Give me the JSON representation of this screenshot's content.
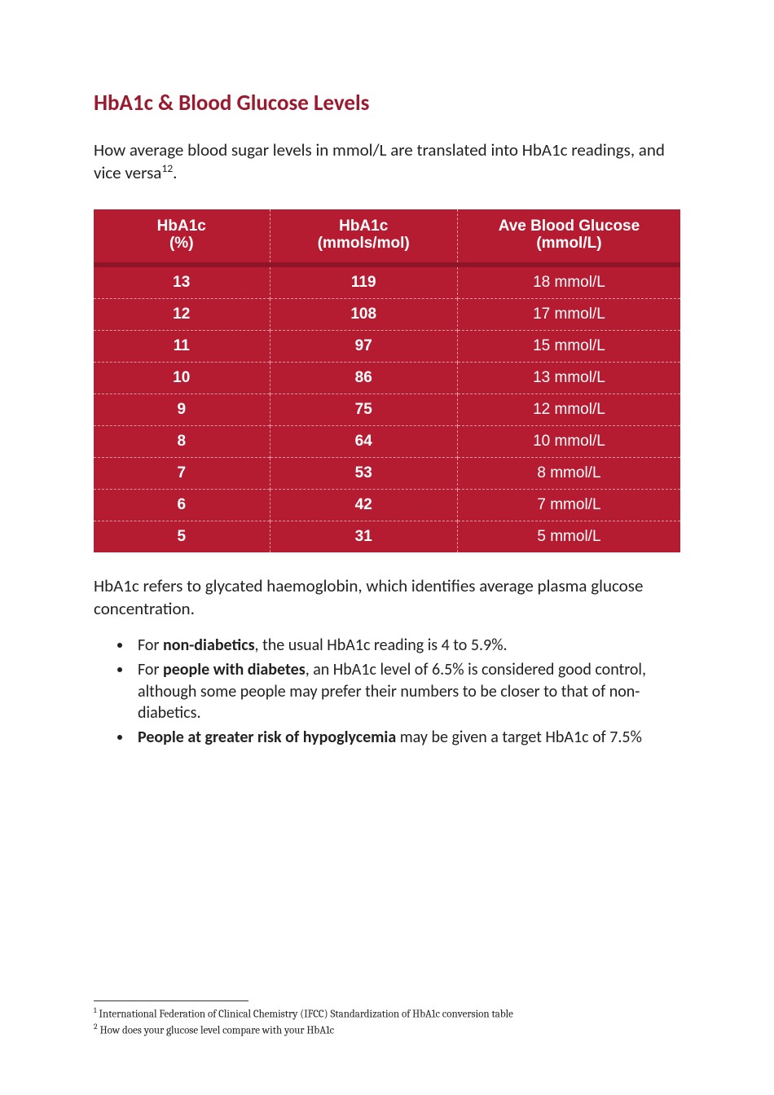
{
  "title": "HbA1c & Blood Glucose Levels",
  "intro_pre": "How average blood sugar levels in mmol/L are translated into HbA1c readings, and vice versa",
  "intro_sup": "12",
  "intro_post": ".",
  "table": {
    "background_color": "#b51c31",
    "header_separator_color": "#8f1427",
    "text_color": "#ffffff",
    "border_style": "dashed",
    "columns": [
      {
        "line1": "HbA1c",
        "line2": "(%)"
      },
      {
        "line1": "HbA1c",
        "line2": "(mmols/mol)"
      },
      {
        "line1": "Ave Blood Glucose",
        "line2": "(mmol/L)"
      }
    ],
    "rows": [
      [
        "13",
        "119",
        "18 mmol/L"
      ],
      [
        "12",
        "108",
        "17 mmol/L"
      ],
      [
        "11",
        "97",
        "15 mmol/L"
      ],
      [
        "10",
        "86",
        "13 mmol/L"
      ],
      [
        "9",
        "75",
        "12 mmol/L"
      ],
      [
        "8",
        "64",
        "10 mmol/L"
      ],
      [
        "7",
        "53",
        "8 mmol/L"
      ],
      [
        "6",
        "42",
        "7 mmol/L"
      ],
      [
        "5",
        "31",
        "5 mmol/L"
      ]
    ]
  },
  "explain": "HbA1c refers to glycated haemoglobin, which identifies average plasma glucose concentration.",
  "bullets": [
    {
      "pre": "For ",
      "bold": "non-diabetics",
      "post": ", the usual HbA1c reading is 4 to 5.9%."
    },
    {
      "pre": "For ",
      "bold": "people with diabetes",
      "post": ", an HbA1c level of 6.5% is considered good control, although some people may prefer their numbers to be closer to that of non-diabetics."
    },
    {
      "pre": "",
      "bold": "People at greater risk of hypoglycemia",
      "post": " may be given a target HbA1c of 7.5%"
    }
  ],
  "footnotes": [
    {
      "num": "1",
      "text": "International Federation of Clinical Chemistry (IFCC) Standardization of HbA1c conversion table"
    },
    {
      "num": "2",
      "text": "How does your glucose level compare with your HbA1c"
    }
  ]
}
